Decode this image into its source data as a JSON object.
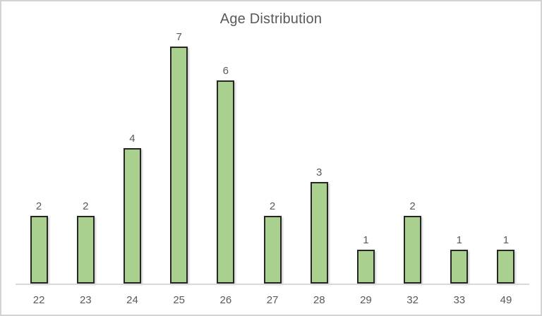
{
  "chart_data": {
    "type": "bar",
    "title": "Age Distribution",
    "categories": [
      "22",
      "23",
      "24",
      "25",
      "26",
      "27",
      "28",
      "29",
      "32",
      "33",
      "49"
    ],
    "values": [
      2,
      2,
      4,
      7,
      6,
      2,
      3,
      1,
      2,
      1,
      1
    ],
    "xlabel": "",
    "ylabel": "",
    "ylim": [
      0,
      7
    ],
    "grid": false,
    "legend": "none",
    "data_labels_shown": true,
    "colors": {
      "bar_fill": "#a9d08e",
      "bar_border": "#262626",
      "title_color": "#595959",
      "label_color": "#595959",
      "axis_line_color": "#d9d9d9",
      "background": "#ffffff",
      "frame_border": "#d2d2d2"
    }
  }
}
